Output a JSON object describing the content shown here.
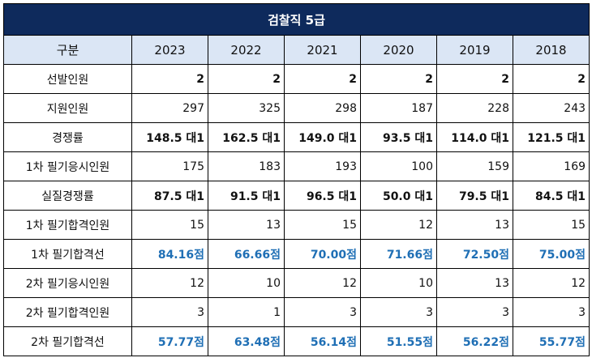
{
  "title": "검찰직 5급",
  "header": [
    "구분",
    "2023",
    "2022",
    "2021",
    "2020",
    "2019",
    "2018"
  ],
  "rows": [
    {
      "label": "선발인원",
      "style": "bold",
      "values": [
        "2",
        "2",
        "2",
        "2",
        "2",
        "2"
      ]
    },
    {
      "label": "지원인원",
      "style": "normal",
      "values": [
        "297",
        "325",
        "298",
        "187",
        "228",
        "243"
      ]
    },
    {
      "label": "경쟁률",
      "style": "bold",
      "values": [
        "148.5 대1",
        "162.5 대1",
        "149.0 대1",
        "93.5 대1",
        "114.0 대1",
        "121.5 대1"
      ]
    },
    {
      "label": "1차 필기응시인원",
      "style": "normal",
      "values": [
        "175",
        "183",
        "193",
        "100",
        "159",
        "169"
      ]
    },
    {
      "label": "실질경쟁률",
      "style": "bold",
      "values": [
        "87.5 대1",
        "91.5 대1",
        "96.5 대1",
        "50.0 대1",
        "79.5 대1",
        "84.5 대1"
      ]
    },
    {
      "label": "1차 필기합격인원",
      "style": "normal",
      "values": [
        "15",
        "13",
        "15",
        "12",
        "13",
        "15"
      ]
    },
    {
      "label": "1차 필기합격선",
      "style": "blue",
      "values": [
        "84.16점",
        "66.66점",
        "70.00점",
        "71.66점",
        "72.50점",
        "75.00점"
      ]
    },
    {
      "label": "2차 필기응시인원",
      "style": "normal",
      "values": [
        "12",
        "10",
        "12",
        "10",
        "13",
        "12"
      ]
    },
    {
      "label": "2차 필기합격인원",
      "style": "normal",
      "values": [
        "3",
        "1",
        "3",
        "3",
        "3",
        "3"
      ]
    },
    {
      "label": "2차 필기합격선",
      "style": "blue",
      "values": [
        "57.77점",
        "63.48점",
        "56.14점",
        "51.55점",
        "56.22점",
        "55.77점"
      ]
    }
  ],
  "colors": {
    "title_bg": "#0e2a5c",
    "header_bg": "#dbe6f5",
    "highlight_text": "#1f6fb5"
  }
}
